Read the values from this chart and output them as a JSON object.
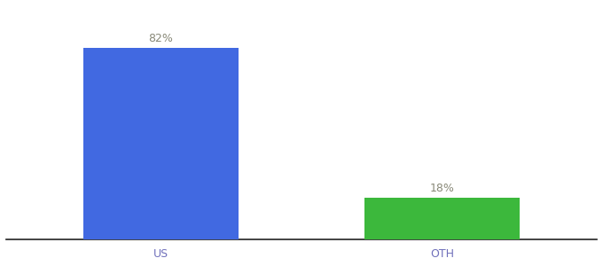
{
  "categories": [
    "US",
    "OTH"
  ],
  "values": [
    82,
    18
  ],
  "bar_colors": [
    "#4169e1",
    "#3cb83c"
  ],
  "labels": [
    "82%",
    "18%"
  ],
  "background_color": "#ffffff",
  "ylim": [
    0,
    100
  ],
  "bar_width": 0.55,
  "label_fontsize": 9,
  "tick_fontsize": 9,
  "label_color": "#888877",
  "tick_color": "#7070bb",
  "spine_color": "#222222"
}
